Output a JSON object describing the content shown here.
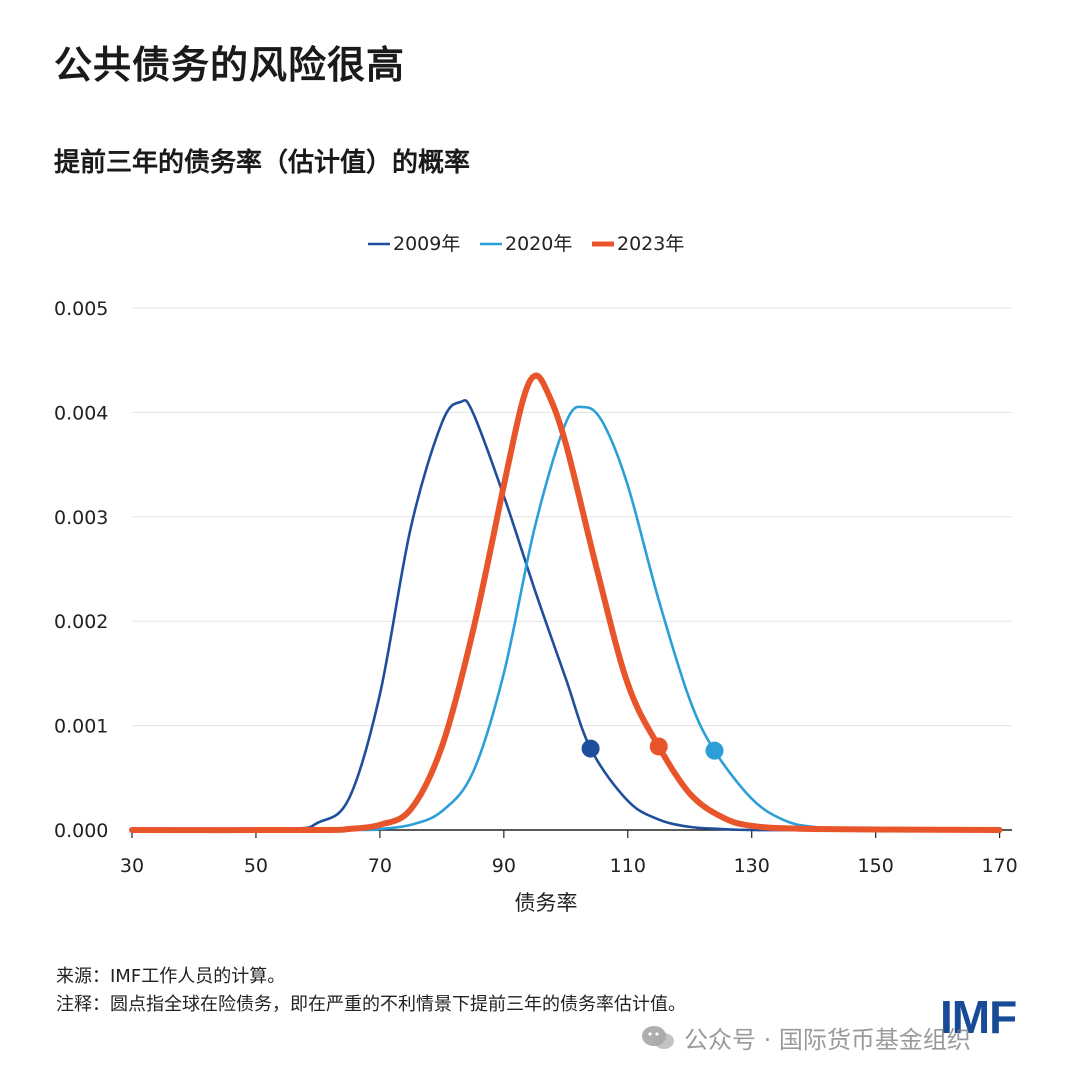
{
  "title": "公共债务的风险很高",
  "subtitle": "提前三年的债务率（估计值）的概率",
  "footnotes": {
    "source": "来源：IMF工作人员的计算。",
    "note": "注释：圆点指全球在险债务，即在严重的不利情景下提前三年的债务率估计值。"
  },
  "brand": "IMF",
  "watermark": "公众号 · 国际货币基金组织",
  "chart_data": {
    "type": "line",
    "title": "提前三年的债务率（估计值）的概率",
    "xlabel": "债务率",
    "ylabel": "",
    "xlim": [
      30,
      172
    ],
    "ylim": [
      0,
      0.005
    ],
    "xticks": [
      30,
      50,
      70,
      90,
      110,
      130,
      150,
      170
    ],
    "yticks": [
      0,
      0.001,
      0.002,
      0.003,
      0.004,
      0.005
    ],
    "ytick_labels": [
      "0.000",
      "0.001",
      "0.002",
      "0.003",
      "0.004",
      "0.005"
    ],
    "grid": true,
    "legend": "top-center",
    "series": [
      {
        "name": "2009年",
        "color": "#1f4e9c",
        "x": [
          30,
          55,
          60,
          65,
          70,
          75,
          80,
          83,
          85,
          90,
          95,
          100,
          104,
          110,
          115,
          120,
          125,
          130,
          140,
          170
        ],
        "y": [
          0,
          1e-05,
          7e-05,
          0.0003,
          0.0013,
          0.0029,
          0.0039,
          0.0041,
          0.004,
          0.0032,
          0.0023,
          0.00145,
          0.00078,
          0.00028,
          0.0001,
          3e-05,
          1e-05,
          0,
          0,
          0
        ],
        "marker": {
          "x": 104,
          "y": 0.00078
        }
      },
      {
        "name": "2020年",
        "color": "#2a9fd8",
        "x": [
          30,
          65,
          70,
          75,
          80,
          85,
          90,
          95,
          100,
          103,
          106,
          110,
          115,
          120,
          124,
          130,
          135,
          140,
          150,
          170
        ],
        "y": [
          0,
          0,
          1e-05,
          5e-05,
          0.00018,
          0.00055,
          0.0015,
          0.0029,
          0.0039,
          0.00405,
          0.0039,
          0.0033,
          0.0022,
          0.00125,
          0.00076,
          0.0003,
          0.0001,
          3e-05,
          0,
          0
        ],
        "marker": {
          "x": 124,
          "y": 0.00076
        }
      },
      {
        "name": "2023年",
        "color": "#e8552a",
        "x": [
          30,
          60,
          65,
          70,
          75,
          80,
          85,
          90,
          93,
          95,
          97,
          100,
          105,
          110,
          115,
          120,
          125,
          130,
          140,
          170
        ],
        "y": [
          0,
          0,
          1e-05,
          5e-05,
          0.0002,
          0.0008,
          0.0019,
          0.0033,
          0.0041,
          0.00435,
          0.0042,
          0.0037,
          0.0025,
          0.0014,
          0.0008,
          0.00035,
          0.00013,
          4e-05,
          1e-05,
          0
        ],
        "marker": {
          "x": 115,
          "y": 0.0008
        }
      }
    ]
  }
}
